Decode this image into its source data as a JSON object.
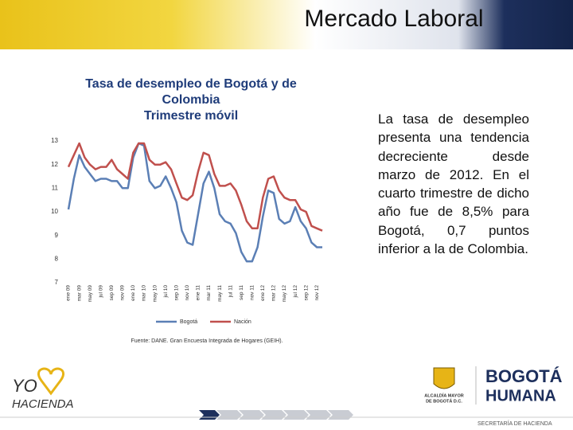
{
  "header": {
    "title": "Mercado Laboral"
  },
  "chart_data": {
    "type": "line",
    "title": [
      "Tasa de desempleo de Bogotá y de",
      "Colombia",
      "Trimestre móvil"
    ],
    "categories": [
      "ene 09",
      null,
      "mar 09",
      null,
      "may 09",
      null,
      "jul 09",
      null,
      "sep 09",
      null,
      "nov 09",
      null,
      "ene 10",
      null,
      "mar 10",
      null,
      "may 10",
      null,
      "jul 10",
      null,
      "sep 10",
      null,
      "nov 10",
      null,
      "ene 11",
      null,
      "mar 11",
      null,
      "may 11",
      null,
      "jul 11",
      null,
      "sep 11",
      null,
      "nov 11",
      null,
      "ene 12",
      null,
      "mar 12",
      null,
      "may 12",
      null,
      "jul 12",
      null,
      "sep 12",
      null,
      "nov 12",
      null
    ],
    "series": [
      {
        "name": "Bogotá",
        "color": "#5b7fb5",
        "values": [
          10.1,
          11.4,
          12.4,
          11.9,
          11.6,
          11.3,
          11.4,
          11.4,
          11.3,
          11.3,
          11.0,
          11.0,
          12.3,
          12.9,
          12.8,
          11.3,
          11.0,
          11.1,
          11.5,
          11.0,
          10.4,
          9.2,
          8.7,
          8.6,
          9.9,
          11.2,
          11.7,
          11.0,
          9.9,
          9.6,
          9.5,
          9.1,
          8.3,
          7.9,
          7.9,
          8.5,
          9.8,
          10.9,
          10.8,
          9.7,
          9.5,
          9.6,
          10.2,
          9.6,
          9.3,
          8.7,
          8.5,
          8.5
        ]
      },
      {
        "name": "Nación",
        "color": "#c0504d",
        "values": [
          11.9,
          12.4,
          12.9,
          12.3,
          12.0,
          11.8,
          11.9,
          11.9,
          12.2,
          11.8,
          11.6,
          11.4,
          12.5,
          12.9,
          12.9,
          12.2,
          12.0,
          12.0,
          12.1,
          11.8,
          11.2,
          10.6,
          10.5,
          10.7,
          11.7,
          12.5,
          12.4,
          11.6,
          11.1,
          11.1,
          11.2,
          10.9,
          10.3,
          9.6,
          9.3,
          9.3,
          10.6,
          11.4,
          11.5,
          10.9,
          10.6,
          10.5,
          10.5,
          10.1,
          10.0,
          9.4,
          9.3,
          9.2
        ]
      }
    ],
    "ylim": [
      7,
      13
    ],
    "yticks": [
      7,
      8,
      9,
      10,
      11,
      12,
      13
    ],
    "grid": false,
    "legend": "bottom",
    "source": "Fuente: DANE. Gran Encuesta Integrada de Hogares (GEIH)."
  },
  "paragraph": "La tasa de desempleo presenta una tendencia decreciente desde marzo de 2012. En el cuarto trimestre de dicho año fue de 8,5% para Bogotá, 0,7 puntos inferior a la de Colombia.",
  "footer": {
    "logo_left": [
      "YO",
      "HACIENDA"
    ],
    "logo_mid": [
      "ALCALDÍA MAYOR",
      "DE BOGOTÁ D.C."
    ],
    "logo_right": [
      "BOGOTÁ",
      "HUMANA"
    ],
    "office": "SECRETARÍA DE HACIENDA"
  }
}
